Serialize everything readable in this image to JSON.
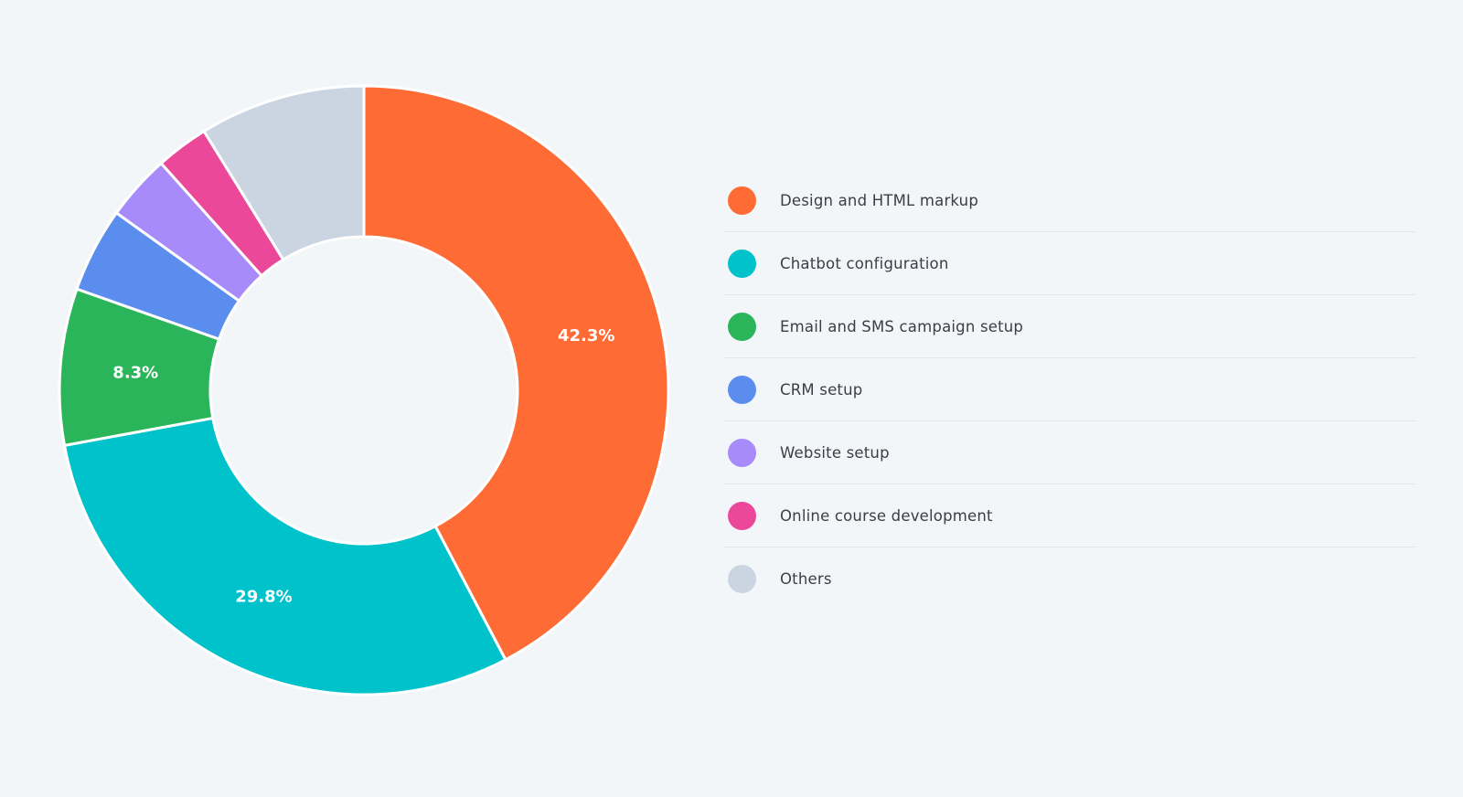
{
  "chart_data": {
    "type": "pie",
    "donut": true,
    "legend_position": "right",
    "categories": [
      "Design and HTML markup",
      "Chatbot configuration",
      "Email and SMS campaign setup",
      "CRM setup",
      "Website setup",
      "Online course development",
      "Others"
    ],
    "values": [
      42.3,
      29.8,
      8.3,
      4.5,
      3.5,
      2.8,
      8.8
    ],
    "data_labels": [
      "42.3%",
      "29.8%",
      "8.3%",
      "",
      "",
      "",
      ""
    ],
    "colors": [
      "#ff6b35",
      "#00c2cb",
      "#2bb55a",
      "#5b8def",
      "#a78bfa",
      "#ec4899",
      "#cbd5e1"
    ]
  }
}
